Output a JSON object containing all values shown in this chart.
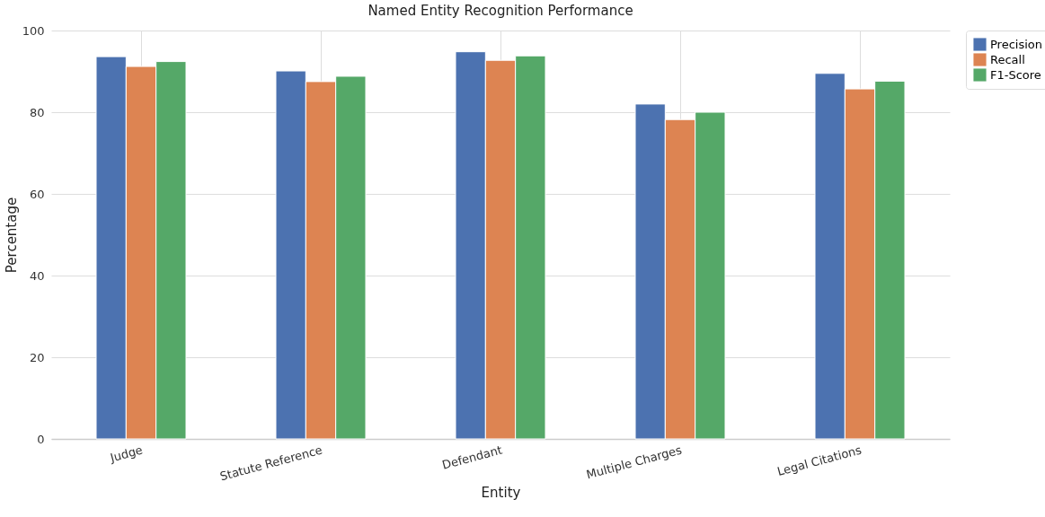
{
  "chart_data": {
    "type": "bar",
    "title": "Named Entity Recognition Performance",
    "xlabel": "Entity",
    "ylabel": "Percentage",
    "categories": [
      "Judge",
      "Statute Reference",
      "Defendant",
      "Multiple Charges",
      "Legal Citations"
    ],
    "series": [
      {
        "name": "Precision",
        "color": "#4c72b0",
        "values": [
          93.6,
          90.1,
          94.8,
          82.0,
          89.5
        ]
      },
      {
        "name": "Recall",
        "color": "#dd8452",
        "values": [
          91.2,
          87.5,
          92.7,
          78.2,
          85.7
        ]
      },
      {
        "name": "F1-Score",
        "color": "#55a868",
        "values": [
          92.4,
          88.8,
          93.8,
          80.0,
          87.6
        ]
      }
    ],
    "ylim": [
      0,
      100
    ],
    "yticks": [
      0,
      20,
      40,
      60,
      80,
      100
    ],
    "grid": true,
    "legend": "top right"
  }
}
